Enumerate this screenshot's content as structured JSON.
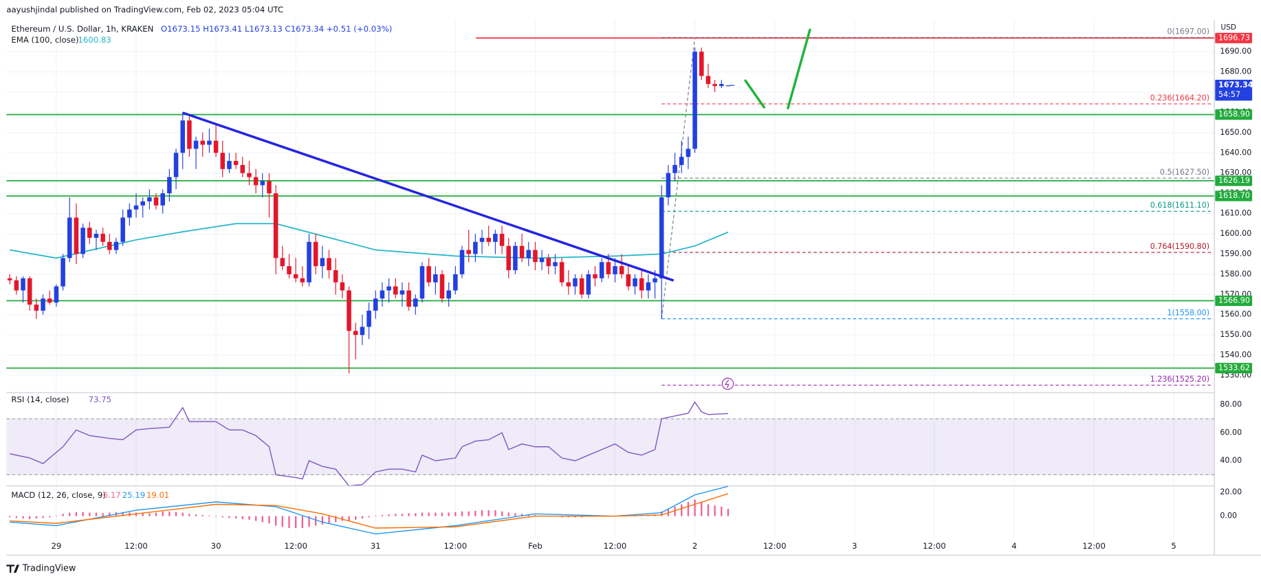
{
  "header": {
    "publisher": "aayushjindal published on TradingView.com, Feb 02, 2023 05:04 UTC",
    "footer": "TradingView"
  },
  "chart_data": [
    {
      "type": "candlestick",
      "title": "Ethereum / U.S. Dollar, 1h, KRAKEN",
      "ohlc_legend": "O1673.15 H1673.41 L1673.13 C1673.34 +0.51 (+0.03%)",
      "y_unit": "USD",
      "x": [
        -7,
        -6,
        -5,
        -4,
        -3,
        -2,
        -1,
        0,
        1,
        2,
        3,
        4,
        5,
        6,
        7,
        8,
        9,
        10,
        11,
        12,
        13,
        14,
        15,
        16,
        17,
        18,
        19,
        20,
        21,
        22,
        23,
        24,
        25,
        26,
        27,
        28,
        29,
        30,
        31,
        32,
        33,
        34,
        35,
        36,
        37,
        38,
        39,
        40,
        41,
        42,
        43,
        44,
        45,
        46,
        47,
        48,
        49,
        50,
        51,
        52,
        53,
        54,
        55,
        56,
        57,
        58,
        59,
        60,
        61,
        62,
        63,
        64,
        65,
        66,
        67,
        68,
        69,
        70,
        71,
        72,
        73,
        74,
        75,
        76,
        77,
        78,
        79,
        80,
        81,
        82,
        83,
        84,
        85,
        86,
        87,
        88,
        89,
        90,
        91,
        92,
        93,
        94,
        95,
        96,
        97,
        98,
        99,
        100,
        101
      ],
      "open": [
        1578,
        1577,
        1572,
        1578,
        1565,
        1562,
        1568,
        1566,
        1574,
        1588,
        1608,
        1590,
        1603,
        1598,
        1600,
        1596,
        1592,
        1596,
        1608,
        1612,
        1614,
        1616,
        1618,
        1614,
        1620,
        1628,
        1640,
        1656,
        1642,
        1646,
        1644,
        1646,
        1640,
        1632,
        1636,
        1634,
        1630,
        1628,
        1624,
        1626,
        1620,
        1588,
        1584,
        1580,
        1578,
        1576,
        1596,
        1584,
        1588,
        1582,
        1576,
        1572,
        1552,
        1550,
        1554,
        1562,
        1568,
        1572,
        1574,
        1570,
        1572,
        1564,
        1568,
        1584,
        1576,
        1580,
        1568,
        1572,
        1580,
        1592,
        1590,
        1596,
        1598,
        1596,
        1600,
        1594,
        1582,
        1594,
        1588,
        1592,
        1586,
        1588,
        1584,
        1586,
        1576,
        1574,
        1578,
        1570,
        1580,
        1578,
        1586,
        1580,
        1584,
        1580,
        1574,
        1578,
        1572,
        1576,
        1578,
        1618,
        1630,
        1634,
        1638,
        1642,
        1690,
        1678,
        1674,
        1673,
        1673.15
      ],
      "high": [
        1580,
        1579,
        1579,
        1579,
        1568,
        1570,
        1572,
        1575,
        1590,
        1618,
        1615,
        1605,
        1606,
        1602,
        1603,
        1600,
        1598,
        1612,
        1615,
        1620,
        1618,
        1622,
        1620,
        1622,
        1632,
        1642,
        1660,
        1658,
        1648,
        1650,
        1652,
        1654,
        1646,
        1640,
        1640,
        1638,
        1636,
        1632,
        1630,
        1630,
        1624,
        1594,
        1590,
        1588,
        1584,
        1600,
        1600,
        1594,
        1592,
        1588,
        1580,
        1574,
        1556,
        1560,
        1566,
        1572,
        1576,
        1578,
        1578,
        1576,
        1576,
        1570,
        1586,
        1588,
        1584,
        1582,
        1576,
        1584,
        1594,
        1602,
        1600,
        1602,
        1604,
        1602,
        1604,
        1598,
        1596,
        1600,
        1596,
        1596,
        1592,
        1590,
        1590,
        1588,
        1582,
        1580,
        1580,
        1582,
        1584,
        1588,
        1590,
        1588,
        1590,
        1584,
        1580,
        1582,
        1580,
        1582,
        1624,
        1634,
        1640,
        1646,
        1648,
        1692,
        1692,
        1684,
        1676,
        1676,
        1673.41
      ],
      "low": [
        1575,
        1570,
        1566,
        1562,
        1558,
        1560,
        1565,
        1564,
        1572,
        1586,
        1585,
        1588,
        1595,
        1592,
        1594,
        1590,
        1590,
        1594,
        1604,
        1608,
        1608,
        1612,
        1612,
        1610,
        1616,
        1622,
        1632,
        1638,
        1632,
        1638,
        1640,
        1638,
        1628,
        1630,
        1632,
        1628,
        1624,
        1620,
        1618,
        1608,
        1580,
        1582,
        1578,
        1576,
        1574,
        1574,
        1580,
        1578,
        1578,
        1570,
        1568,
        1531,
        1538,
        1545,
        1548,
        1558,
        1564,
        1566,
        1568,
        1564,
        1562,
        1560,
        1566,
        1574,
        1570,
        1566,
        1564,
        1570,
        1578,
        1586,
        1586,
        1590,
        1594,
        1590,
        1590,
        1578,
        1580,
        1586,
        1584,
        1582,
        1582,
        1580,
        1580,
        1574,
        1570,
        1570,
        1568,
        1568,
        1574,
        1576,
        1578,
        1576,
        1578,
        1572,
        1570,
        1568,
        1568,
        1568,
        1558,
        1614,
        1626,
        1630,
        1632,
        1640,
        1676,
        1672,
        1670,
        1672,
        1673.13
      ],
      "close": [
        1577,
        1572,
        1578,
        1565,
        1562,
        1568,
        1566,
        1574,
        1588,
        1608,
        1590,
        1603,
        1598,
        1600,
        1596,
        1592,
        1596,
        1608,
        1612,
        1614,
        1616,
        1618,
        1614,
        1620,
        1628,
        1640,
        1656,
        1642,
        1646,
        1644,
        1646,
        1640,
        1632,
        1636,
        1634,
        1630,
        1628,
        1624,
        1626,
        1620,
        1588,
        1584,
        1580,
        1578,
        1576,
        1596,
        1584,
        1588,
        1582,
        1576,
        1572,
        1552,
        1550,
        1554,
        1562,
        1568,
        1572,
        1574,
        1570,
        1572,
        1564,
        1568,
        1584,
        1576,
        1580,
        1568,
        1572,
        1580,
        1592,
        1590,
        1596,
        1598,
        1596,
        1600,
        1594,
        1582,
        1594,
        1588,
        1592,
        1586,
        1588,
        1584,
        1586,
        1576,
        1574,
        1578,
        1570,
        1580,
        1578,
        1586,
        1580,
        1584,
        1580,
        1574,
        1578,
        1572,
        1576,
        1578,
        1618,
        1630,
        1634,
        1638,
        1642,
        1690,
        1678,
        1674,
        1673,
        1674,
        1673.34
      ],
      "up_color": "#2340e0",
      "down_color": "#e3172b",
      "xlim": [
        -7.5,
        174.1
      ],
      "xticks": [
        {
          "value": 0,
          "label": "29"
        },
        {
          "value": 12,
          "label": "12:00"
        },
        {
          "value": 24,
          "label": "30"
        },
        {
          "value": 36,
          "label": "12:00"
        },
        {
          "value": 48,
          "label": "31"
        },
        {
          "value": 60,
          "label": "12:00"
        },
        {
          "value": 72,
          "label": "Feb"
        },
        {
          "value": 84,
          "label": "12:00"
        },
        {
          "value": 96,
          "label": "2"
        },
        {
          "value": 108,
          "label": "12:00"
        },
        {
          "value": 120,
          "label": "3"
        },
        {
          "value": 132,
          "label": "12:00"
        },
        {
          "value": 144,
          "label": "4"
        },
        {
          "value": 156,
          "label": "12:00"
        },
        {
          "value": 168,
          "label": "5"
        }
      ],
      "ylim": [
        1521.5,
        1705.5
      ],
      "yticks": [
        {
          "value": 1530,
          "label": "1530.00"
        },
        {
          "value": 1540,
          "label": "1540.00"
        },
        {
          "value": 1550,
          "label": "1550.00"
        },
        {
          "value": 1560,
          "label": "1560.00"
        },
        {
          "value": 1570,
          "label": "1570.00"
        },
        {
          "value": 1580,
          "label": "1580.00"
        },
        {
          "value": 1590,
          "label": "1590.00"
        },
        {
          "value": 1600,
          "label": "1600.00"
        },
        {
          "value": 1610,
          "label": "1610.00"
        },
        {
          "value": 1620,
          "label": "1620.00"
        },
        {
          "value": 1630,
          "label": "1630.00"
        },
        {
          "value": 1640,
          "label": "1640.00"
        },
        {
          "value": 1650,
          "label": "1650.00"
        },
        {
          "value": 1660,
          "label": "1660.00"
        },
        {
          "value": 1670,
          "label": "1670.00"
        },
        {
          "value": 1680,
          "label": "1680.00"
        },
        {
          "value": 1690,
          "label": "1690.00"
        }
      ],
      "grid": true,
      "ema": {
        "name": "EMA (100, close)",
        "value_label": "1600.83",
        "color": "#22b5c8",
        "x": [
          -7,
          0,
          12,
          19,
          27,
          33,
          40,
          48,
          60,
          72,
          84,
          91,
          96,
          101
        ],
        "values": [
          1592,
          1588,
          1597,
          1601,
          1605,
          1605,
          1599,
          1592,
          1589,
          1588,
          1589,
          1590,
          1594,
          1600.83
        ]
      },
      "levels": [
        {
          "value": 1658.9,
          "label": "1658.90"
        },
        {
          "value": 1626.19,
          "label": "1626.19"
        },
        {
          "value": 1618.7,
          "label": "1618.70"
        },
        {
          "value": 1566.9,
          "label": "1566.90"
        },
        {
          "value": 1533.62,
          "label": "1533.62"
        }
      ],
      "level_color": "#22ab3c",
      "resistance": {
        "value": 1696.73,
        "label": "1696.73",
        "color": "#f23645"
      },
      "fib": [
        {
          "value": 1697,
          "label": "0(1697.00)",
          "color": "#787b86"
        },
        {
          "value": 1664.2,
          "label": "0.236(1664.20)",
          "color": "#f23645"
        },
        {
          "value": 1627.5,
          "label": "0.5(1627.50)",
          "color": "#787b86"
        },
        {
          "value": 1611.1,
          "label": "0.618(1611.10)",
          "color": "#089981"
        },
        {
          "value": 1590.8,
          "label": "0.764(1590.80)",
          "color": "#b2182b"
        },
        {
          "value": 1558,
          "label": "1(1558.00)",
          "color": "#2196f3"
        },
        {
          "value": 1525.2,
          "label": "1.236(1525.20)",
          "color": "#9c27b0"
        }
      ],
      "fib_anchor_x": [
        91,
        96
      ],
      "trendline": {
        "x": [
          19,
          92.8
        ],
        "values": [
          1659.8,
          1576.9
        ],
        "color": "#2424e0"
      },
      "projection": {
        "x": [
          103.6,
          106.4,
          108,
          110,
          113.3
        ],
        "values": [
          1675.7,
          1662.5,
          null,
          1662.1,
          1700.8
        ],
        "color": "#1fb53a"
      },
      "last_price": {
        "value": 1673.34,
        "label": "1673.34",
        "countdown": "54:57",
        "color": "#2340e0"
      }
    },
    {
      "type": "line",
      "title": "RSI (14, close)",
      "value_label": "73.75",
      "color": "#7e57c2",
      "x": [
        -7,
        -4,
        -2,
        1,
        3,
        5,
        8,
        10,
        12,
        14,
        17,
        19,
        20,
        22,
        24,
        26,
        28,
        30,
        32,
        33,
        36,
        37,
        38,
        40,
        42,
        44,
        46,
        48,
        50,
        52,
        54,
        55,
        57,
        60,
        61,
        63,
        65,
        67,
        68,
        70,
        72,
        74,
        76,
        78,
        80,
        82,
        84,
        86,
        88,
        90,
        91,
        93,
        95,
        96,
        97,
        98,
        101
      ],
      "values": [
        45,
        42,
        38,
        50,
        62,
        58,
        56,
        55,
        62,
        63,
        64,
        78,
        68,
        68,
        68,
        62,
        62,
        58,
        50,
        30,
        28,
        27,
        40,
        36,
        34,
        22,
        23,
        32,
        34,
        34,
        32,
        44,
        40,
        42,
        50,
        54,
        55,
        60,
        48,
        52,
        50,
        50,
        42,
        40,
        44,
        48,
        52,
        46,
        44,
        48,
        70,
        72,
        74,
        82,
        75,
        73,
        73.75
      ],
      "ylim": [
        22,
        88.7
      ],
      "band": [
        30,
        70
      ],
      "yticks": [
        {
          "value": 40,
          "label": "40.00"
        },
        {
          "value": 60,
          "label": "60.00"
        },
        {
          "value": 80,
          "label": "80.00"
        }
      ]
    },
    {
      "type": "macd",
      "title": "MACD (12, 26, close, 9)",
      "histogram": {
        "value_label": "6.17",
        "color": "#f06292",
        "values": [
          -1,
          -1.5,
          -2,
          -2.5,
          -2,
          -1.5,
          -1,
          0.5,
          2,
          3,
          3.5,
          3.5,
          3,
          3,
          2.5,
          3,
          3.5,
          3.5,
          3,
          3,
          3,
          2.5,
          3,
          4,
          4,
          3.5,
          3,
          2,
          1.5,
          1,
          0.5,
          -0.5,
          -1,
          -1.5,
          -2,
          -2.5,
          -3,
          -4,
          -5,
          -6,
          -8,
          -9,
          -10,
          -10,
          -10,
          -9,
          -8,
          -7,
          -6,
          -5,
          -4,
          -4,
          -3,
          -2,
          -1,
          0.5,
          1,
          1.5,
          2,
          2,
          2.5,
          2.5,
          3,
          3,
          3,
          3,
          3,
          3.5,
          4,
          4,
          4.5,
          5,
          5,
          5,
          4,
          3,
          2.5,
          2,
          1.5,
          1,
          0.5,
          0,
          -0.5,
          -1,
          -1,
          -1,
          -1,
          -0.5,
          -0.5,
          0,
          0,
          0.5,
          0.5,
          0.5,
          0,
          0.5,
          1,
          1.5,
          4,
          6,
          8,
          10,
          12,
          14,
          12,
          10,
          9,
          8,
          6.17
        ]
      },
      "series": [
        {
          "value_label": "25.19",
          "color": "#2196f3",
          "x": [
            -7,
            0,
            12,
            24,
            33,
            40,
            48,
            60,
            72,
            84,
            91,
            96,
            101
          ],
          "values": [
            -5,
            -8,
            5,
            12,
            8,
            -5,
            -15,
            -8,
            2,
            0,
            3,
            18,
            25.19
          ]
        },
        {
          "value_label": "19.01",
          "color": "#ff6d00",
          "x": [
            -7,
            0,
            12,
            24,
            33,
            40,
            48,
            60,
            72,
            84,
            91,
            96,
            101
          ],
          "values": [
            -4,
            -6,
            2,
            10,
            9,
            2,
            -10,
            -9,
            0,
            0,
            1,
            10,
            19.01
          ]
        }
      ],
      "ylim": [
        -17.9,
        25.5
      ],
      "yticks": [
        {
          "value": 0,
          "label": "0.00"
        },
        {
          "value": 20,
          "label": "20.00"
        }
      ]
    }
  ]
}
